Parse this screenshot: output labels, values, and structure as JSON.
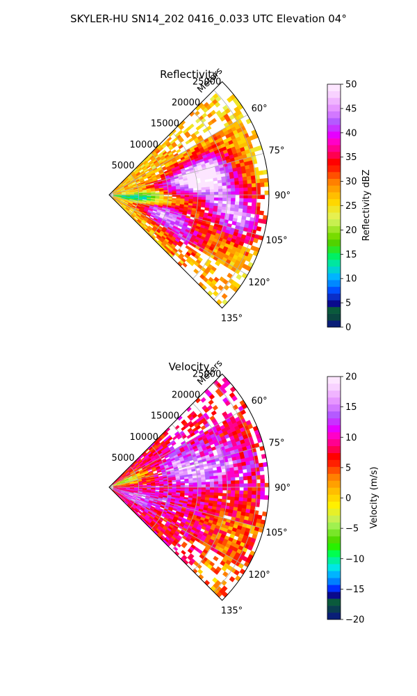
{
  "figure": {
    "suptitle": "SKYLER-HU  SN14_202  0416_0.033 UTC Elevation 04°"
  },
  "chart_data": [
    {
      "type": "heatmap",
      "projection": "polar-sector",
      "title": "Reflectivity",
      "radial_label": "Meters",
      "azimuth_range_deg": [
        45,
        135
      ],
      "range_max_m": 27000,
      "radial_ticks": [
        "5000",
        "10000",
        "15000",
        "20000",
        "25000"
      ],
      "angle_ticks": [
        "60°",
        "75°",
        "90°",
        "105°",
        "120°",
        "135°"
      ],
      "grid": true,
      "colorbar": {
        "label": "Reflectivity dBZ",
        "range": [
          0,
          50
        ],
        "ticks": [
          "0",
          "5",
          "10",
          "15",
          "20",
          "25",
          "30",
          "35",
          "40",
          "45",
          "50"
        ],
        "colors": [
          "#0a1e78",
          "#0a4640",
          "#0a5a3c",
          "#0a0a8c",
          "#0a2ec8",
          "#0050ff",
          "#0088ff",
          "#00b4ff",
          "#00d2d2",
          "#00e6a0",
          "#00f064",
          "#28e628",
          "#50d200",
          "#78dc00",
          "#a0e628",
          "#c8f050",
          "#e6f050",
          "#f0e628",
          "#ffd700",
          "#ffbe00",
          "#ffa000",
          "#ff8000",
          "#ff5000",
          "#ff2000",
          "#ff0000",
          "#ff0050",
          "#ff0090",
          "#ff00c8",
          "#e600ff",
          "#c832ff",
          "#b45aff",
          "#d278ff",
          "#e696ff",
          "#f0b4ff",
          "#f8d2ff",
          "#fde6ff"
        ]
      },
      "field": {
        "palette_low_value": 15,
        "palette_high_value": 42,
        "base_level": 27,
        "hotspots": [
          {
            "r_m": 12000,
            "az_deg": 80,
            "value": 42
          },
          {
            "r_m": 17000,
            "az_deg": 76,
            "value": 45
          },
          {
            "r_m": 9000,
            "az_deg": 108,
            "value": 46
          },
          {
            "r_m": 22000,
            "az_deg": 100,
            "value": 44
          },
          {
            "r_m": 18000,
            "az_deg": 88,
            "value": 40
          },
          {
            "r_m": 14000,
            "az_deg": 118,
            "value": 38
          },
          {
            "r_m": 6000,
            "az_deg": 95,
            "value": 16
          },
          {
            "r_m": 3000,
            "az_deg": 100,
            "value": 18
          }
        ]
      }
    },
    {
      "type": "heatmap",
      "projection": "polar-sector",
      "title": "Velocity",
      "radial_label": "Meters",
      "azimuth_range_deg": [
        45,
        135
      ],
      "range_max_m": 27000,
      "radial_ticks": [
        "5000",
        "10000",
        "15000",
        "20000",
        "25000"
      ],
      "angle_ticks": [
        "60°",
        "75°",
        "90°",
        "105°",
        "120°",
        "135°"
      ],
      "grid": true,
      "colorbar": {
        "label": "Velocity (m/s)",
        "range": [
          -20,
          20
        ],
        "ticks": [
          "−20",
          "−15",
          "−10",
          "−5",
          "0",
          "5",
          "10",
          "15",
          "20"
        ],
        "colors": [
          "#0a1e78",
          "#0a3c50",
          "#0a5a3c",
          "#0a0a8c",
          "#0030ff",
          "#0080ff",
          "#00b4ff",
          "#00e6e6",
          "#00f0a0",
          "#00ff50",
          "#28f000",
          "#50dc00",
          "#78e628",
          "#a0f050",
          "#c8f050",
          "#e6f028",
          "#fff000",
          "#ffd700",
          "#ffbe00",
          "#ffa000",
          "#ff8000",
          "#ff5000",
          "#ff2000",
          "#ff0000",
          "#ff0050",
          "#ff0090",
          "#ff00c8",
          "#e600ff",
          "#c832ff",
          "#b45aff",
          "#d278ff",
          "#e696ff",
          "#f0b4ff",
          "#f8d2ff",
          "#fde6ff"
        ]
      },
      "field": {
        "palette_low_value": 0,
        "palette_high_value": 14,
        "base_level": 8,
        "hotspots": [
          {
            "r_m": 12000,
            "az_deg": 70,
            "value": 14
          },
          {
            "r_m": 15000,
            "az_deg": 82,
            "value": 15
          },
          {
            "r_m": 20000,
            "az_deg": 78,
            "value": 12
          },
          {
            "r_m": 8000,
            "az_deg": 100,
            "value": 11
          },
          {
            "r_m": 4000,
            "az_deg": 112,
            "value": 14
          },
          {
            "r_m": 23000,
            "az_deg": 110,
            "value": 3
          },
          {
            "r_m": 24000,
            "az_deg": 130,
            "value": 1
          },
          {
            "r_m": 3000,
            "az_deg": 70,
            "value": -4
          }
        ]
      }
    }
  ]
}
